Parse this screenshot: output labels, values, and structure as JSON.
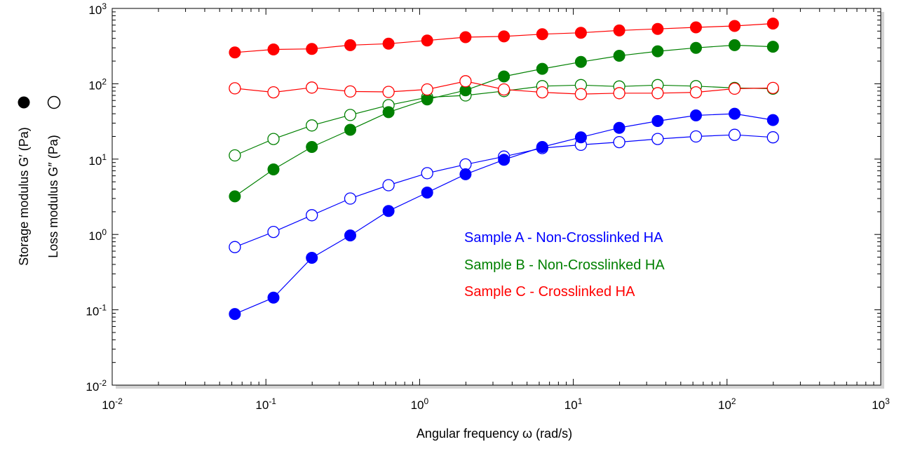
{
  "chart_data": {
    "type": "scatter",
    "xscale": "log",
    "yscale": "log",
    "xlim": [
      0.01,
      1000
    ],
    "ylim": [
      0.01,
      1000
    ],
    "xlabel": "Angular frequency  ω  (rad/s)",
    "ylabel_storage": "Storage modulus  G′  (Pa)",
    "ylabel_loss": "Loss modulus  G″  (Pa)",
    "x_tick_labels": [
      "10-2",
      "10-1",
      "100",
      "101",
      "102",
      "103"
    ],
    "y_tick_labels": [
      "10-2",
      "10-1",
      "100",
      "101",
      "102",
      "103"
    ],
    "x": [
      0.0628,
      0.112,
      0.199,
      0.354,
      0.628,
      1.12,
      1.99,
      3.54,
      6.28,
      11.2,
      19.9,
      35.4,
      62.8,
      112,
      199
    ],
    "series": [
      {
        "name": "Sample A - Non-Crosslinked HA",
        "color": "#0000ff",
        "storage": [
          0.088,
          0.145,
          0.49,
          0.97,
          2.05,
          3.6,
          6.3,
          9.8,
          14.5,
          19.5,
          26,
          32,
          38,
          40,
          33
        ],
        "loss": [
          0.68,
          1.08,
          1.8,
          3.0,
          4.5,
          6.5,
          8.5,
          10.8,
          14.0,
          15.5,
          16.8,
          18.5,
          20.0,
          21.0,
          19.5
        ]
      },
      {
        "name": "Sample B - Non-Crosslinked HA",
        "color": "#008000",
        "storage": [
          3.2,
          7.3,
          14.5,
          24.5,
          42,
          62,
          82,
          125,
          158,
          195,
          235,
          270,
          300,
          325,
          310
        ],
        "loss": [
          11.2,
          18.5,
          28,
          38.5,
          52,
          66,
          70,
          80,
          93,
          96,
          92,
          96,
          93,
          88,
          86
        ]
      },
      {
        "name": "Sample C - Crosslinked HA",
        "color": "#ff0000",
        "storage": [
          260,
          285,
          290,
          325,
          340,
          375,
          415,
          425,
          455,
          475,
          510,
          535,
          560,
          585,
          630
        ],
        "loss": [
          87,
          77,
          89,
          79,
          78,
          84,
          108,
          84,
          77,
          73,
          75,
          75,
          77,
          86,
          88
        ]
      }
    ],
    "grid": false,
    "legend": "center-right"
  }
}
